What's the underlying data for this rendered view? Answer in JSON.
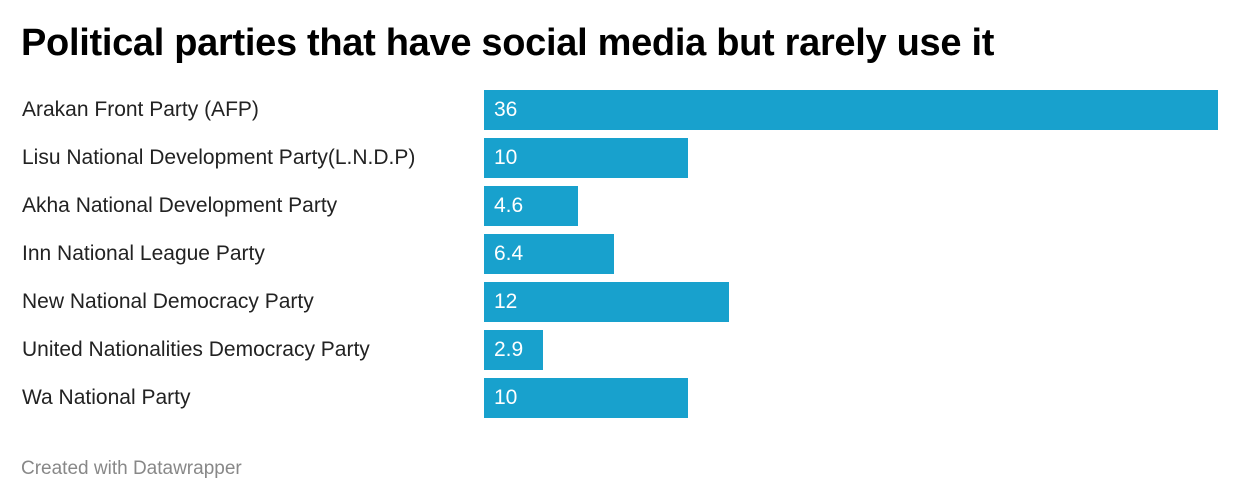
{
  "chart_data": {
    "type": "bar",
    "orientation": "horizontal",
    "title": "Political parties that have social media but rarely use it",
    "categories": [
      "Arakan Front Party (AFP)",
      "Lisu National Development Party(L.N.D.P)",
      "Akha National Development Party",
      "Inn National League Party",
      "New National Democracy Party",
      "United Nationalities Democracy Party",
      "Wa National Party"
    ],
    "values": [
      36,
      10,
      4.6,
      6.4,
      12,
      2.9,
      10
    ],
    "value_labels": [
      "36",
      "10",
      "4.6",
      "6.4",
      "12",
      "2.9",
      "10"
    ],
    "xlim": [
      0,
      36
    ],
    "bar_color": "#18a1cd",
    "grid": false
  },
  "footer": "Created with Datawrapper"
}
